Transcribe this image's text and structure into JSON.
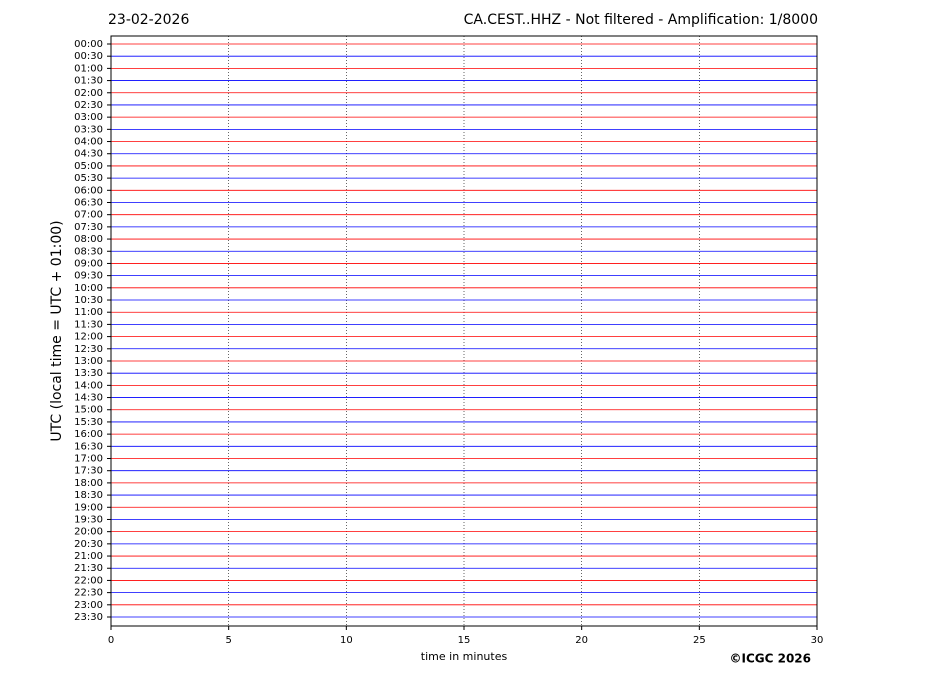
{
  "chart_data": {
    "type": "helicorder",
    "date": "23-02-2026",
    "title": "CA.CEST..HHZ - Not filtered - Amplification: 1/8000",
    "y_label": "UTC (local time = UTC + 01:00)",
    "x_label": "time in minutes",
    "credit": "©ICGC 2026",
    "categories": [
      "00:00",
      "00:30",
      "01:00",
      "01:30",
      "02:00",
      "02:30",
      "03:00",
      "03:30",
      "04:00",
      "04:30",
      "05:00",
      "05:30",
      "06:00",
      "06:30",
      "07:00",
      "07:30",
      "08:00",
      "08:30",
      "09:00",
      "09:30",
      "10:00",
      "10:30",
      "11:00",
      "11:30",
      "12:00",
      "12:30",
      "13:00",
      "13:30",
      "14:00",
      "14:30",
      "15:00",
      "15:30",
      "16:00",
      "16:30",
      "17:00",
      "17:30",
      "18:00",
      "18:30",
      "19:00",
      "19:30",
      "20:00",
      "20:30",
      "21:00",
      "21:30",
      "22:00",
      "22:30",
      "23:00",
      "23:30"
    ],
    "trace_colors": [
      "#ff0000",
      "#0000ff"
    ],
    "xlim": [
      0,
      30
    ],
    "xticks": [
      0,
      5,
      10,
      15,
      20,
      25,
      30
    ],
    "grid": true
  }
}
